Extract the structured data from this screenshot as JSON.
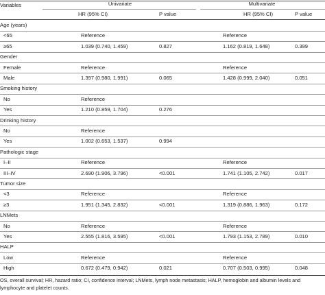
{
  "header": {
    "variables": "Variables",
    "univariate": "Univariate",
    "multivariate": "Multivariate",
    "hr_col": "HR (95% CI)",
    "p_col": "P value"
  },
  "rows": [
    {
      "type": "group",
      "label": "Age (years)"
    },
    {
      "type": "item",
      "label": "<65",
      "uni_hr": "Reference",
      "uni_p": "",
      "multi_hr": "Reference",
      "multi_p": ""
    },
    {
      "type": "item",
      "label": "≥65",
      "uni_hr": "1.039 (0.740, 1.459)",
      "uni_p": "0.827",
      "multi_hr": "1.162 (0.819, 1.648)",
      "multi_p": "0.399"
    },
    {
      "type": "group",
      "label": "Gender"
    },
    {
      "type": "item",
      "label": "Female",
      "uni_hr": "Reference",
      "uni_p": "",
      "multi_hr": "Reference",
      "multi_p": ""
    },
    {
      "type": "item",
      "label": "Male",
      "uni_hr": "1.397 (0.980, 1.991)",
      "uni_p": "0.065",
      "multi_hr": "1.428 (0.999, 2.040)",
      "multi_p": "0.051"
    },
    {
      "type": "group",
      "label": "Smoking history"
    },
    {
      "type": "item",
      "label": "No",
      "uni_hr": "Reference",
      "uni_p": "",
      "multi_hr": "",
      "multi_p": ""
    },
    {
      "type": "item",
      "label": "Yes",
      "uni_hr": "1.210 (0.859, 1.704)",
      "uni_p": "0.276",
      "multi_hr": "",
      "multi_p": ""
    },
    {
      "type": "group",
      "label": "Drinking history"
    },
    {
      "type": "item",
      "label": "No",
      "uni_hr": "Reference",
      "uni_p": "",
      "multi_hr": "",
      "multi_p": ""
    },
    {
      "type": "item",
      "label": "Yes",
      "uni_hr": "1.002 (0.653, 1.537)",
      "uni_p": "0.994",
      "multi_hr": "",
      "multi_p": ""
    },
    {
      "type": "group",
      "label": "Pathologic stage"
    },
    {
      "type": "item",
      "label": "I–II",
      "uni_hr": "Reference",
      "uni_p": "",
      "multi_hr": "Reference",
      "multi_p": ""
    },
    {
      "type": "item",
      "label": "III–IV",
      "uni_hr": "2.690 (1.906, 3.796)",
      "uni_p": "<0.001",
      "multi_hr": "1.741 (1.105, 2.742)",
      "multi_p": "0.017"
    },
    {
      "type": "group",
      "label": "Tumor size"
    },
    {
      "type": "item",
      "label": "<3",
      "uni_hr": "Reference",
      "uni_p": "",
      "multi_hr": "Reference",
      "multi_p": ""
    },
    {
      "type": "item",
      "label": "≥3",
      "uni_hr": "1.951 (1.345, 2.832)",
      "uni_p": "<0.001",
      "multi_hr": "1.319 (0.886, 1.963)",
      "multi_p": "0.172"
    },
    {
      "type": "group",
      "label": "LNMets"
    },
    {
      "type": "item",
      "label": "No",
      "uni_hr": "Reference",
      "uni_p": "",
      "multi_hr": "Reference",
      "multi_p": ""
    },
    {
      "type": "item",
      "label": "Yes",
      "uni_hr": "2.555 (1.816, 3.595)",
      "uni_p": "<0.001",
      "multi_hr": "1.793 (1.153, 2.789)",
      "multi_p": "0.010"
    },
    {
      "type": "group",
      "label": "HALP"
    },
    {
      "type": "item",
      "label": "Low",
      "uni_hr": "Reference",
      "uni_p": "",
      "multi_hr": "Reference",
      "multi_p": ""
    },
    {
      "type": "item",
      "label": "High",
      "uni_hr": "0.672 (0.479, 0.942)",
      "uni_p": "0.021",
      "multi_hr": "0.707 (0.503, 0.995)",
      "multi_p": "0.048"
    }
  ],
  "footnote": "OS, overall survival; HR, hazard ratio; CI, confidence interval; LNMets, lymph node metastasis; HALP, hemoglobin and albumin levels and lymphocyte and platelet counts."
}
